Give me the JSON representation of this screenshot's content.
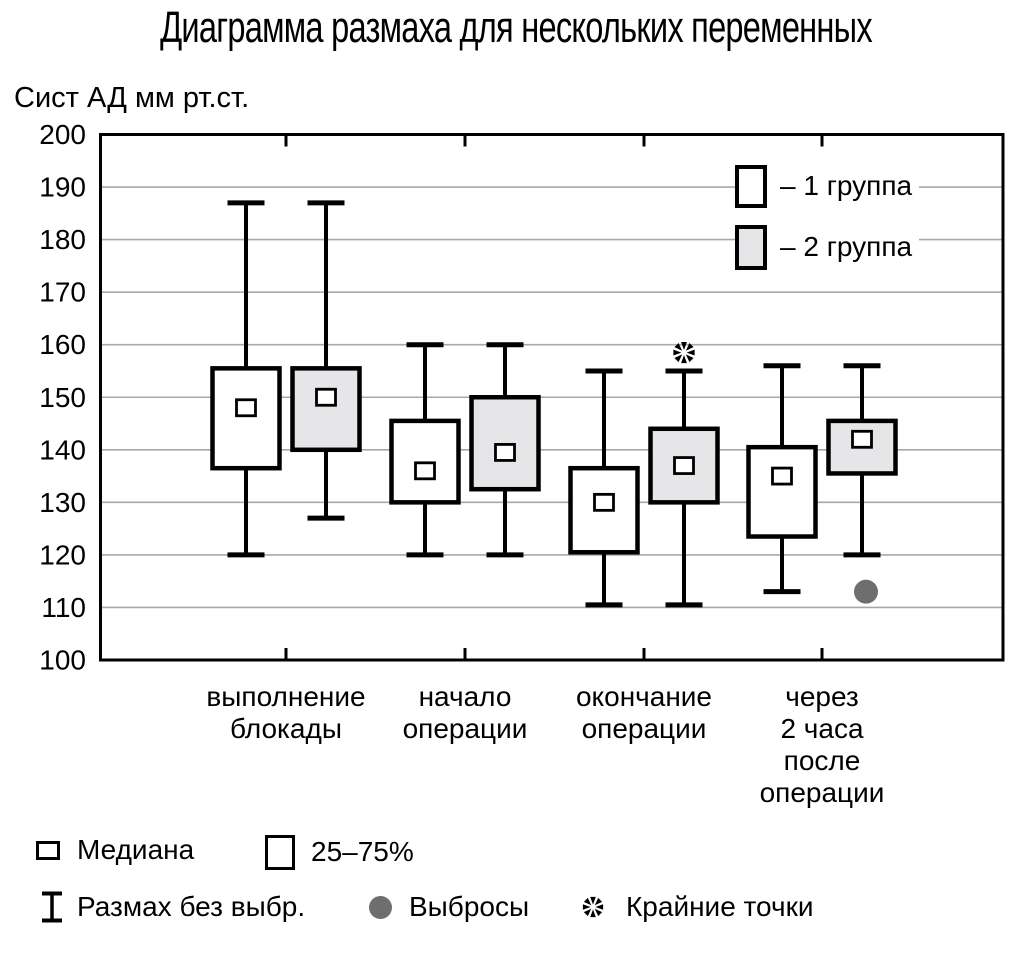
{
  "chart_data": {
    "type": "boxplot",
    "title": "Диаграмма размаха для нескольких переменных",
    "ylabel": "Сист АД мм рт.ст.",
    "ylim": [
      100,
      200
    ],
    "ytick_step": 10,
    "ytick_labels": [
      "100",
      "110",
      "120",
      "130",
      "140",
      "150",
      "160",
      "170",
      "180",
      "190",
      "200"
    ],
    "grid": {
      "horizontal": true,
      "values": [
        110,
        120,
        130,
        140,
        150,
        160,
        170,
        180,
        190
      ]
    },
    "legend_position": "top-right-inside",
    "categories": [
      {
        "label": "выполнение блокады",
        "label_lines": [
          "выполнение",
          "блокады"
        ]
      },
      {
        "label": "начало операции",
        "label_lines": [
          "начало",
          "операции"
        ]
      },
      {
        "label": "окончание операции",
        "label_lines": [
          "окончание",
          "операции"
        ]
      },
      {
        "label": "через 2 часа после операции",
        "label_lines": [
          "через",
          "2 часа",
          "после",
          "операции"
        ]
      }
    ],
    "series": [
      {
        "name": "1 группа",
        "box_fill": "#ffffff",
        "boxes": [
          {
            "low": 120,
            "q1": 136.5,
            "median": 148,
            "q3": 155.5,
            "high": 187
          },
          {
            "low": 120,
            "q1": 130,
            "median": 136,
            "q3": 145.5,
            "high": 160
          },
          {
            "low": 110.5,
            "q1": 120.5,
            "median": 130,
            "q3": 136.5,
            "high": 155
          },
          {
            "low": 113,
            "q1": 123.5,
            "median": 135,
            "q3": 140.5,
            "high": 156
          }
        ]
      },
      {
        "name": "2 группа",
        "box_fill": "#e6e6e8",
        "boxes": [
          {
            "low": 127,
            "q1": 140,
            "median": 150,
            "q3": 155.5,
            "high": 187
          },
          {
            "low": 120,
            "q1": 132.5,
            "median": 139.5,
            "q3": 150,
            "high": 160
          },
          {
            "low": 110.5,
            "q1": 130,
            "median": 137,
            "q3": 144,
            "high": 155
          },
          {
            "low": 120,
            "q1": 135.5,
            "median": 142,
            "q3": 145.5,
            "high": 156
          }
        ]
      }
    ],
    "outliers": [
      {
        "series": "2 группа",
        "category_index": 3,
        "value": 113
      }
    ],
    "extreme_points": [
      {
        "series": "2 группа",
        "category_index": 2,
        "value": 158.5
      }
    ]
  },
  "top_legend": {
    "items": [
      {
        "label": "– 1 группа",
        "swatch_fill": "#ffffff"
      },
      {
        "label": "– 2 группа",
        "swatch_fill": "#e6e6e8"
      }
    ]
  },
  "bottom_legend": {
    "median": "Медиана",
    "box": "25–75%",
    "whisker": "Размах без выбр.",
    "outliers": "Выбросы",
    "extremes": "Крайние точки"
  },
  "colors": {
    "ink": "#000000",
    "gridline": "#a8a8a8",
    "box_gray": "#e6e6e8",
    "outlier_dot": "#6e6e70",
    "background": "#ffffff"
  }
}
